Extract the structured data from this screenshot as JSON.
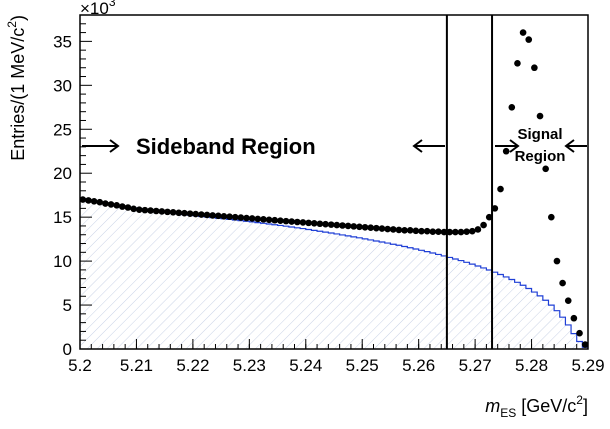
{
  "chart_data": {
    "type": "scatter",
    "xlabel_symbol": "m",
    "xlabel_sub": "ES",
    "xlabel_unit": " [GeV/c",
    "xlabel_unit_sup": "2",
    "xlabel_unit_end": "]",
    "ylabel_main": "Entries/(1 MeV/c",
    "ylabel_sup": "2",
    "ylabel_end": ")",
    "y_multiplier_base": "×10",
    "y_multiplier_exp": "3",
    "xlim": [
      5.2,
      5.29
    ],
    "ylim": [
      0,
      38000
    ],
    "x_ticks": [
      "5.2",
      "5.21",
      "5.22",
      "5.23",
      "5.24",
      "5.25",
      "5.26",
      "5.27",
      "5.28",
      "5.29"
    ],
    "y_ticks": [
      "0",
      "5",
      "10",
      "15",
      "20",
      "25",
      "30",
      "35"
    ],
    "grid": false,
    "annotations": {
      "sideband_label": "Sideband Region",
      "signal_label_1": "Signal",
      "signal_label_2": "Region",
      "sideband_boundary": 5.265,
      "signal_boundary": 5.273
    },
    "series": [
      {
        "kind": "points",
        "color": "#000000",
        "x": [
          5.2005,
          5.2015,
          5.2025,
          5.2035,
          5.2045,
          5.2055,
          5.2065,
          5.2075,
          5.2085,
          5.2095,
          5.2105,
          5.2115,
          5.2125,
          5.2135,
          5.2145,
          5.2155,
          5.2165,
          5.2175,
          5.2185,
          5.2195,
          5.2205,
          5.2215,
          5.2225,
          5.2235,
          5.2245,
          5.2255,
          5.2265,
          5.2275,
          5.2285,
          5.2295,
          5.2305,
          5.2315,
          5.2325,
          5.2335,
          5.2345,
          5.2355,
          5.2365,
          5.2375,
          5.2385,
          5.2395,
          5.2405,
          5.2415,
          5.2425,
          5.2435,
          5.2445,
          5.2455,
          5.2465,
          5.2475,
          5.2485,
          5.2495,
          5.2505,
          5.2515,
          5.2525,
          5.2535,
          5.2545,
          5.2555,
          5.2565,
          5.2575,
          5.2585,
          5.2595,
          5.2605,
          5.2615,
          5.2625,
          5.2635,
          5.2645,
          5.2655,
          5.2665,
          5.2675,
          5.2685,
          5.2695,
          5.2705,
          5.2715,
          5.2725,
          5.2735,
          5.2745,
          5.2755,
          5.2765,
          5.2775,
          5.2785,
          5.2795,
          5.2805,
          5.2815,
          5.2825,
          5.2835,
          5.2845,
          5.2855,
          5.2865,
          5.2875,
          5.2885,
          5.2895
        ],
        "y": [
          17000,
          16900,
          16800,
          16700,
          16550,
          16450,
          16350,
          16200,
          16100,
          15950,
          15850,
          15800,
          15750,
          15700,
          15650,
          15600,
          15550,
          15500,
          15450,
          15400,
          15350,
          15300,
          15250,
          15200,
          15150,
          15100,
          15050,
          15000,
          14950,
          14900,
          14850,
          14800,
          14750,
          14700,
          14650,
          14600,
          14550,
          14500,
          14450,
          14400,
          14350,
          14300,
          14250,
          14200,
          14150,
          14100,
          14050,
          14000,
          13950,
          13900,
          13850,
          13800,
          13750,
          13700,
          13650,
          13600,
          13550,
          13500,
          13500,
          13450,
          13400,
          13400,
          13350,
          13350,
          13300,
          13300,
          13300,
          13300,
          13350,
          13400,
          13600,
          14100,
          15000,
          16000,
          18200,
          22500,
          27500,
          32500,
          36000,
          35200,
          32000,
          26500,
          20500,
          15000,
          10000,
          7500,
          5500,
          3500,
          1800,
          500
        ]
      },
      {
        "kind": "histogram",
        "color": "#1f3fd6",
        "hatch_color": "#c9d2e6",
        "x": [
          5.2005,
          5.2015,
          5.2025,
          5.2035,
          5.2045,
          5.2055,
          5.2065,
          5.2075,
          5.2085,
          5.2095,
          5.2105,
          5.2115,
          5.2125,
          5.2135,
          5.2145,
          5.2155,
          5.2165,
          5.2175,
          5.2185,
          5.2195,
          5.2205,
          5.2215,
          5.2225,
          5.2235,
          5.2245,
          5.2255,
          5.2265,
          5.2275,
          5.2285,
          5.2295,
          5.2305,
          5.2315,
          5.2325,
          5.2335,
          5.2345,
          5.2355,
          5.2365,
          5.2375,
          5.2385,
          5.2395,
          5.2405,
          5.2415,
          5.2425,
          5.2435,
          5.2445,
          5.2455,
          5.2465,
          5.2475,
          5.2485,
          5.2495,
          5.2505,
          5.2515,
          5.2525,
          5.2535,
          5.2545,
          5.2555,
          5.2565,
          5.2575,
          5.2585,
          5.2595,
          5.2605,
          5.2615,
          5.2625,
          5.2635,
          5.2645,
          5.2655,
          5.2665,
          5.2675,
          5.2685,
          5.2695,
          5.2705,
          5.2715,
          5.2725,
          5.2735,
          5.2745,
          5.2755,
          5.2765,
          5.2775,
          5.2785,
          5.2795,
          5.2805,
          5.2815,
          5.2825,
          5.2835,
          5.2845,
          5.2855,
          5.2865,
          5.2875,
          5.2885,
          5.2895
        ],
        "y": [
          17100,
          16950,
          16800,
          16700,
          16550,
          16450,
          16350,
          16250,
          16150,
          16050,
          15950,
          15850,
          15750,
          15680,
          15600,
          15520,
          15450,
          15380,
          15300,
          15230,
          15160,
          15090,
          15020,
          14950,
          14880,
          14810,
          14740,
          14670,
          14600,
          14530,
          14460,
          14380,
          14300,
          14220,
          14140,
          14060,
          13970,
          13880,
          13790,
          13700,
          13600,
          13500,
          13400,
          13300,
          13200,
          13090,
          12980,
          12870,
          12760,
          12650,
          12530,
          12410,
          12290,
          12170,
          12050,
          11920,
          11800,
          11660,
          11520,
          11380,
          11230,
          11080,
          10920,
          10760,
          10590,
          10420,
          10240,
          10060,
          9860,
          9660,
          9440,
          9220,
          8990,
          8740,
          8480,
          8200,
          7910,
          7590,
          7250,
          6880,
          6480,
          6040,
          5550,
          4990,
          4360,
          3620,
          2740,
          1750,
          850,
          200
        ]
      }
    ]
  }
}
